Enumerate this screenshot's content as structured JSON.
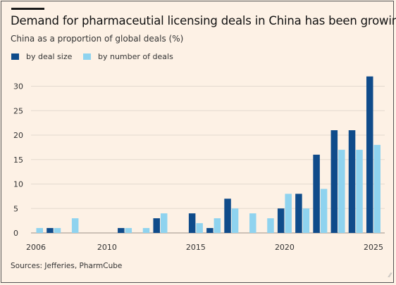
{
  "title": "Demand for pharmaceutial licensing deals in China has been growing",
  "subtitle": "China as a proportion of global deals (%)",
  "source": "Sources: Jefferies, PharmCube",
  "colors": {
    "background": "#fdf1e5",
    "deal_size": "#0f4b8a",
    "number_of_deals": "#8fd3ef",
    "grid": "#e3d9cf",
    "text": "#333333"
  },
  "chart_data": {
    "type": "bar",
    "title": "Demand for pharmaceutial licensing deals in China has been growing",
    "subtitle": "China as a proportion of global deals (%)",
    "xlabel": "",
    "ylabel": "",
    "ylim": [
      0,
      32
    ],
    "yticks": [
      0,
      5,
      10,
      15,
      20,
      25,
      30
    ],
    "xticks": [
      2006,
      2010,
      2015,
      2020,
      2025
    ],
    "legend_position": "top-left",
    "grid": "horizontal",
    "categories": [
      2006,
      2007,
      2008,
      2009,
      2010,
      2011,
      2012,
      2013,
      2014,
      2015,
      2016,
      2017,
      2018,
      2019,
      2020,
      2021,
      2022,
      2023,
      2024,
      2025
    ],
    "series": [
      {
        "name": "by deal size",
        "values": [
          0,
          1,
          0,
          0,
          0,
          1,
          0,
          3,
          0,
          4,
          1,
          7,
          0,
          0,
          5,
          8,
          16,
          21,
          21,
          32
        ]
      },
      {
        "name": "by number of deals",
        "values": [
          1,
          1,
          3,
          0,
          0,
          1,
          1,
          4,
          0,
          2,
          3,
          5,
          4,
          3,
          8,
          5,
          9,
          17,
          17,
          18
        ]
      }
    ]
  }
}
